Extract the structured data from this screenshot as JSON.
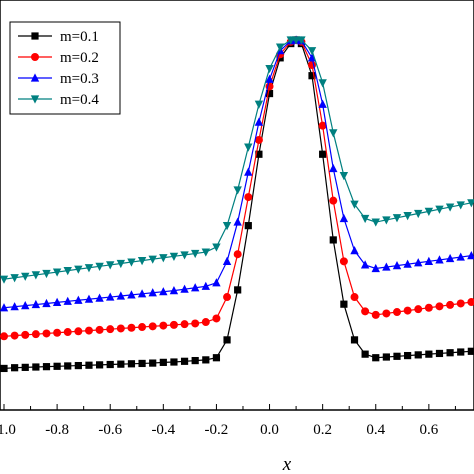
{
  "chart_data": {
    "type": "line",
    "xlabel": "x",
    "ylabel": "",
    "title": "",
    "xlim": [
      -1.0,
      0.77
    ],
    "ylim": [
      0.0,
      1.0
    ],
    "x_ticks": [
      "-1.0",
      "-0.8",
      "-0.6",
      "-0.4",
      "-0.2",
      "0.0",
      "0.2",
      "0.4",
      "0.6"
    ],
    "x_tick_values": [
      -1.0,
      -0.8,
      -0.6,
      -0.4,
      -0.2,
      0.0,
      0.2,
      0.4,
      0.6
    ],
    "grid": false,
    "legend_position": "top-left",
    "series": [
      {
        "name": "m=0.1",
        "color": "#000000",
        "marker": "square",
        "x": [
          -1.0,
          -0.96,
          -0.92,
          -0.88,
          -0.84,
          -0.8,
          -0.76,
          -0.72,
          -0.68,
          -0.64,
          -0.6,
          -0.56,
          -0.52,
          -0.48,
          -0.44,
          -0.4,
          -0.36,
          -0.32,
          -0.28,
          -0.24,
          -0.2,
          -0.16,
          -0.12,
          -0.08,
          -0.04,
          0.0,
          0.04,
          0.08,
          0.1,
          0.12,
          0.16,
          0.2,
          0.24,
          0.28,
          0.32,
          0.36,
          0.4,
          0.44,
          0.48,
          0.52,
          0.56,
          0.6,
          0.64,
          0.68,
          0.72,
          0.76
        ],
        "y": [
          0.08,
          0.082,
          0.083,
          0.084,
          0.085,
          0.086,
          0.087,
          0.088,
          0.089,
          0.09,
          0.091,
          0.092,
          0.093,
          0.094,
          0.095,
          0.097,
          0.098,
          0.1,
          0.102,
          0.104,
          0.11,
          0.16,
          0.3,
          0.48,
          0.68,
          0.85,
          0.95,
          0.99,
          1.0,
          0.99,
          0.9,
          0.68,
          0.44,
          0.26,
          0.16,
          0.12,
          0.11,
          0.112,
          0.114,
          0.116,
          0.118,
          0.12,
          0.122,
          0.124,
          0.126,
          0.128
        ]
      },
      {
        "name": "m=0.2",
        "color": "#ff0000",
        "marker": "circle",
        "x": [
          -1.0,
          -0.96,
          -0.92,
          -0.88,
          -0.84,
          -0.8,
          -0.76,
          -0.72,
          -0.68,
          -0.64,
          -0.6,
          -0.56,
          -0.52,
          -0.48,
          -0.44,
          -0.4,
          -0.36,
          -0.32,
          -0.28,
          -0.24,
          -0.2,
          -0.16,
          -0.12,
          -0.08,
          -0.04,
          0.0,
          0.04,
          0.08,
          0.1,
          0.12,
          0.16,
          0.2,
          0.24,
          0.28,
          0.32,
          0.36,
          0.4,
          0.44,
          0.48,
          0.52,
          0.56,
          0.6,
          0.64,
          0.68,
          0.72,
          0.76
        ],
        "y": [
          0.17,
          0.172,
          0.174,
          0.176,
          0.178,
          0.18,
          0.182,
          0.184,
          0.186,
          0.188,
          0.19,
          0.192,
          0.194,
          0.196,
          0.198,
          0.2,
          0.202,
          0.204,
          0.206,
          0.21,
          0.22,
          0.28,
          0.4,
          0.56,
          0.72,
          0.87,
          0.96,
          0.995,
          1.0,
          0.995,
          0.93,
          0.76,
          0.55,
          0.38,
          0.28,
          0.24,
          0.23,
          0.234,
          0.238,
          0.242,
          0.246,
          0.25,
          0.254,
          0.258,
          0.262,
          0.266
        ]
      },
      {
        "name": "m=0.3",
        "color": "#0000ff",
        "marker": "triangle-up",
        "x": [
          -1.0,
          -0.96,
          -0.92,
          -0.88,
          -0.84,
          -0.8,
          -0.76,
          -0.72,
          -0.68,
          -0.64,
          -0.6,
          -0.56,
          -0.52,
          -0.48,
          -0.44,
          -0.4,
          -0.36,
          -0.32,
          -0.28,
          -0.24,
          -0.2,
          -0.16,
          -0.12,
          -0.08,
          -0.04,
          0.0,
          0.04,
          0.08,
          0.1,
          0.12,
          0.16,
          0.2,
          0.24,
          0.28,
          0.32,
          0.36,
          0.4,
          0.44,
          0.48,
          0.52,
          0.56,
          0.6,
          0.64,
          0.68,
          0.72,
          0.76
        ],
        "y": [
          0.25,
          0.253,
          0.256,
          0.259,
          0.262,
          0.265,
          0.268,
          0.271,
          0.274,
          0.277,
          0.28,
          0.283,
          0.286,
          0.289,
          0.292,
          0.295,
          0.298,
          0.302,
          0.306,
          0.31,
          0.32,
          0.38,
          0.49,
          0.63,
          0.77,
          0.89,
          0.97,
          0.998,
          1.0,
          0.998,
          0.95,
          0.82,
          0.64,
          0.5,
          0.41,
          0.37,
          0.36,
          0.364,
          0.368,
          0.372,
          0.376,
          0.38,
          0.384,
          0.388,
          0.392,
          0.396
        ]
      },
      {
        "name": "m=0.4",
        "color": "#008080",
        "marker": "triangle-down",
        "x": [
          -1.0,
          -0.96,
          -0.92,
          -0.88,
          -0.84,
          -0.8,
          -0.76,
          -0.72,
          -0.68,
          -0.64,
          -0.6,
          -0.56,
          -0.52,
          -0.48,
          -0.44,
          -0.4,
          -0.36,
          -0.32,
          -0.28,
          -0.24,
          -0.2,
          -0.16,
          -0.12,
          -0.08,
          -0.04,
          0.0,
          0.04,
          0.08,
          0.1,
          0.12,
          0.16,
          0.2,
          0.24,
          0.28,
          0.32,
          0.36,
          0.4,
          0.44,
          0.48,
          0.52,
          0.56,
          0.6,
          0.64,
          0.68,
          0.72,
          0.76
        ],
        "y": [
          0.33,
          0.334,
          0.338,
          0.342,
          0.346,
          0.35,
          0.354,
          0.358,
          0.362,
          0.366,
          0.37,
          0.374,
          0.378,
          0.382,
          0.386,
          0.39,
          0.394,
          0.398,
          0.402,
          0.406,
          0.42,
          0.48,
          0.58,
          0.7,
          0.82,
          0.92,
          0.98,
          1.0,
          1.0,
          1.0,
          0.97,
          0.88,
          0.74,
          0.62,
          0.54,
          0.5,
          0.49,
          0.496,
          0.502,
          0.508,
          0.514,
          0.52,
          0.526,
          0.532,
          0.538,
          0.544
        ]
      }
    ]
  }
}
